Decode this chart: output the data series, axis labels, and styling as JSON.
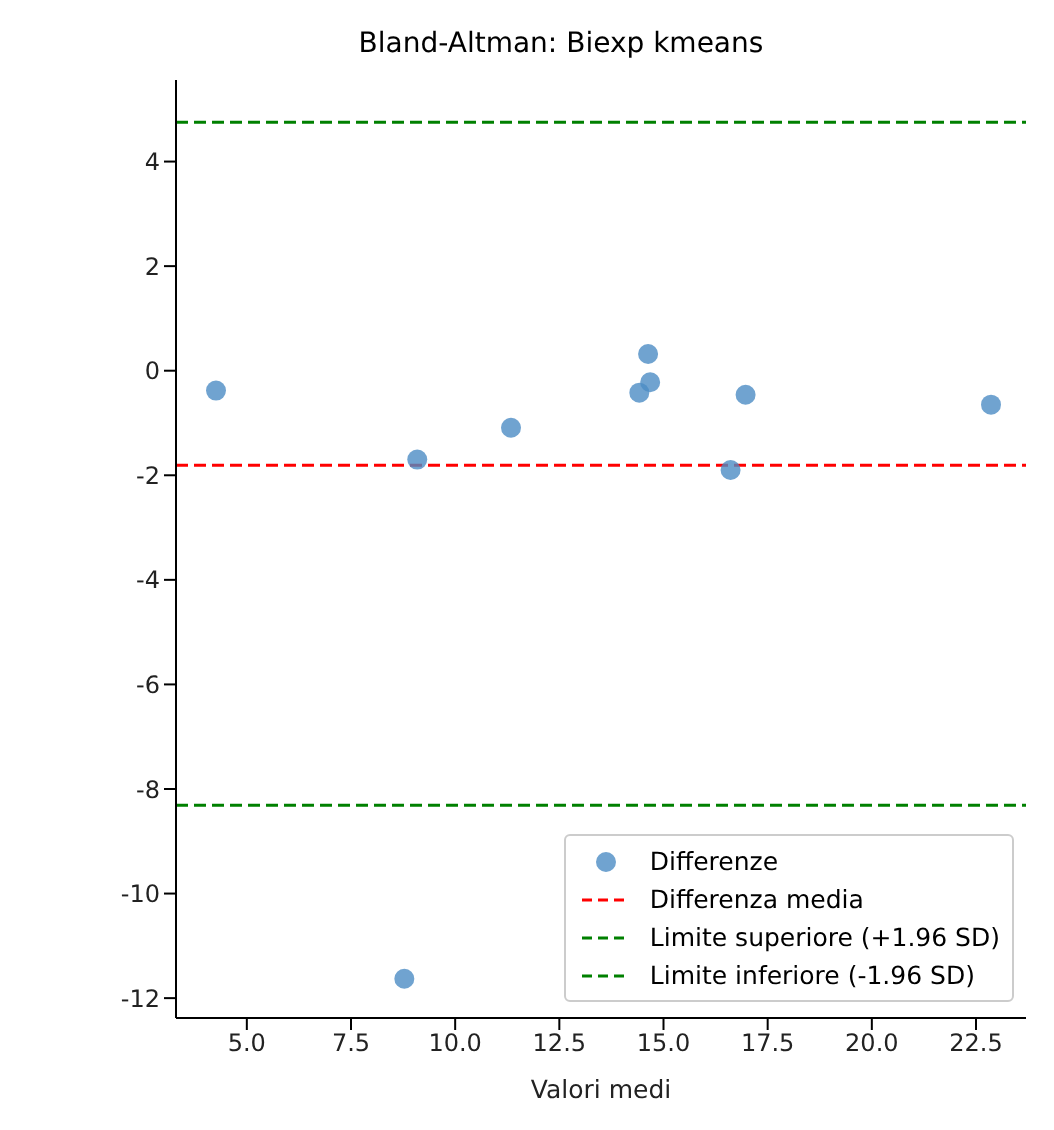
{
  "chart_data": {
    "type": "scatter",
    "title": "Bland-Altman: Biexp kmeans",
    "xlabel": "Valori medi",
    "series": [
      {
        "name": "Differenze",
        "color": "#4c8cc4",
        "x": [
          4.26,
          9.09,
          11.34,
          14.42,
          14.63,
          14.68,
          16.97,
          16.61,
          22.86,
          8.78
        ],
        "values": [
          -0.38,
          -1.7,
          -1.09,
          -0.42,
          0.32,
          -0.22,
          -0.46,
          -1.9,
          -0.65,
          -11.63
        ]
      }
    ],
    "ref_lines": [
      {
        "axis": "y",
        "value": -1.81,
        "label": "Differenza media",
        "color": "#ff0000",
        "line_style": "dashed"
      },
      {
        "axis": "y",
        "value": 4.75,
        "label": "Limite superiore (+1.96 SD)",
        "color": "#008000",
        "line_style": "dashed"
      },
      {
        "axis": "y",
        "value": -8.31,
        "label": "Limite inferiore (-1.96 SD)",
        "color": "#008000",
        "line_style": "dashed"
      }
    ],
    "xlim": [
      3.3,
      23.7
    ],
    "ylim": [
      -12.38,
      5.56
    ],
    "xticks": [
      {
        "value": 5,
        "label": "5.0"
      },
      {
        "value": 7.5,
        "label": "7.5"
      },
      {
        "value": 10,
        "label": "10.0"
      },
      {
        "value": 12.5,
        "label": "12.5"
      },
      {
        "value": 15,
        "label": "15.0"
      },
      {
        "value": 17.5,
        "label": "17.5"
      },
      {
        "value": 20,
        "label": "20.0"
      },
      {
        "value": 22.5,
        "label": "22.5"
      }
    ],
    "yticks": [
      -12,
      -10,
      -8,
      -6,
      -4,
      -2,
      0,
      2,
      4
    ],
    "legend": "bottom right",
    "marker": "circle",
    "grid": false
  }
}
